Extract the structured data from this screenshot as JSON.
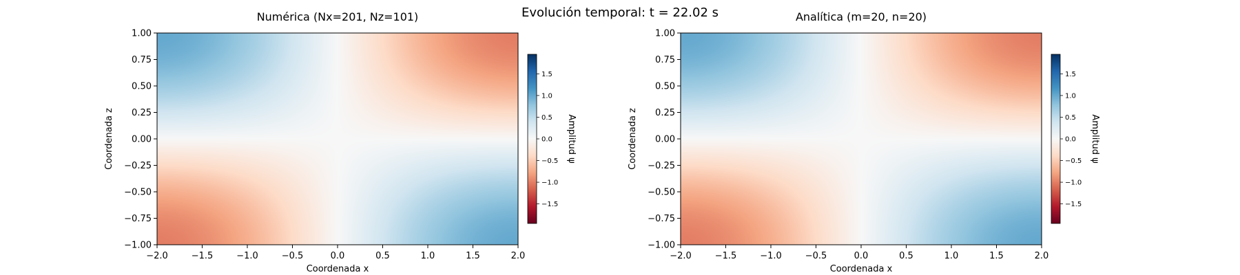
{
  "suptitle": "Evolución temporal: t = 22.02 s",
  "chart_data": [
    {
      "type": "heatmap",
      "title": "Numérica (Nx=201, Nz=101)",
      "xlabel": "Coordenada x",
      "ylabel": "Coordenada z",
      "xlim": [
        -2.0,
        2.0
      ],
      "ylim": [
        -1.0,
        1.0
      ],
      "xticks": [
        "−2.0",
        "−1.5",
        "−1.0",
        "−0.5",
        "0.0",
        "0.5",
        "1.0",
        "1.5",
        "2.0"
      ],
      "yticks": [
        "1.00",
        "0.75",
        "0.50",
        "0.25",
        "0.00",
        "−0.25",
        "−0.50",
        "−0.75",
        "−1.00"
      ],
      "colormap": "RdBu",
      "field": "psi(x,z) ≈ -A·sin(πx/4)·sin(πz/2), A ≈ 1.0, peaks near (±2, ±0.8)",
      "amplitude_max": 1.0,
      "colorbar": {
        "label": "Amplitud ψ",
        "range": [
          -1.95,
          1.95
        ],
        "ticks": [
          "1.5",
          "1.0",
          "0.5",
          "0.0",
          "−0.5",
          "−1.0",
          "−1.5"
        ]
      }
    },
    {
      "type": "heatmap",
      "title": "Analítica (m=20, n=20)",
      "xlabel": "Coordenada x",
      "ylabel": "Coordenada z",
      "xlim": [
        -2.0,
        2.0
      ],
      "ylim": [
        -1.0,
        1.0
      ],
      "xticks": [
        "−2.0",
        "−1.5",
        "−1.0",
        "−0.5",
        "0.0",
        "0.5",
        "1.0",
        "1.5",
        "2.0"
      ],
      "yticks": [
        "1.00",
        "0.75",
        "0.50",
        "0.25",
        "0.00",
        "−0.25",
        "−0.50",
        "−0.75",
        "−1.00"
      ],
      "colormap": "RdBu",
      "field": "psi(x,z) ≈ -A·sin(πx/4)·sin(πz/2), A ≈ 1.0, peaks near (±2, ±0.8)",
      "amplitude_max": 1.0,
      "colorbar": {
        "label": "Amplitud ψ",
        "range": [
          -1.95,
          1.95
        ],
        "ticks": [
          "1.5",
          "1.0",
          "0.5",
          "0.0",
          "−0.5",
          "−1.0",
          "−1.5"
        ]
      }
    }
  ]
}
